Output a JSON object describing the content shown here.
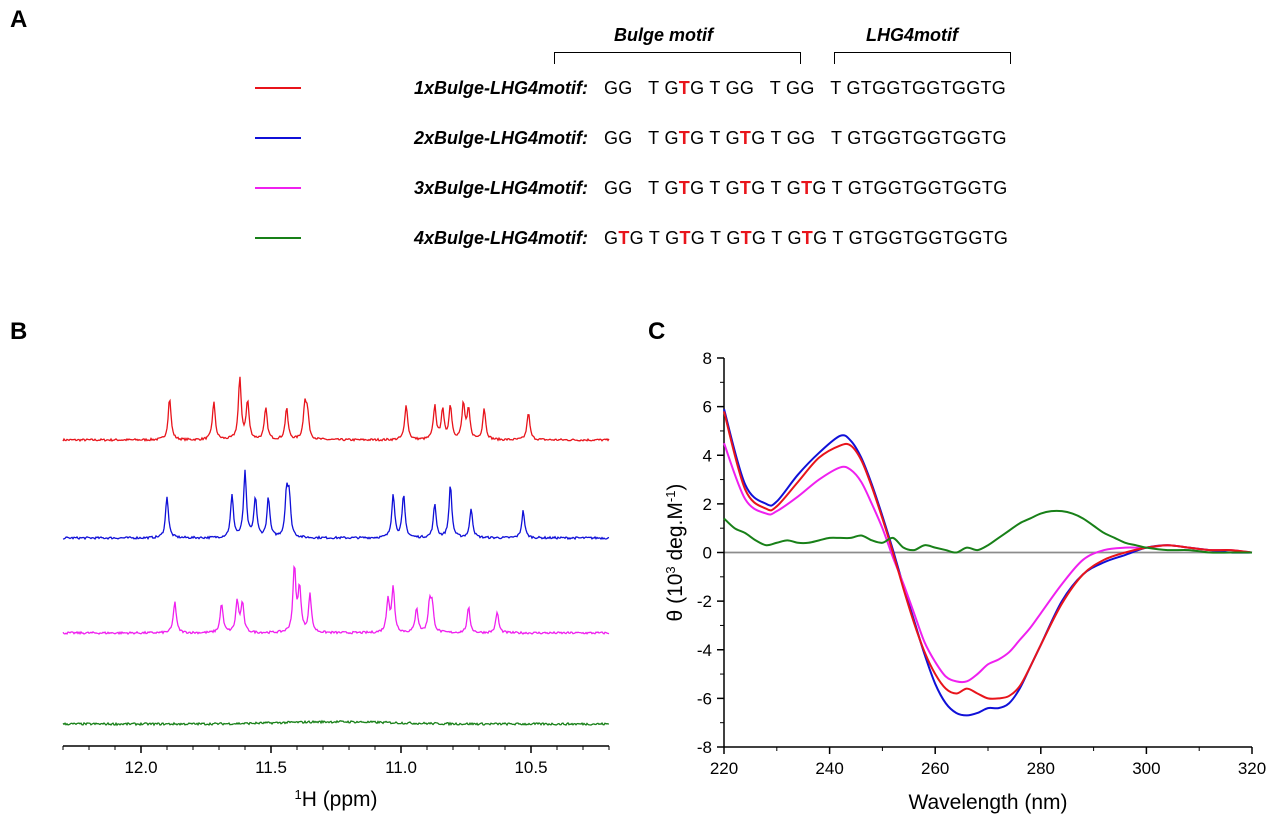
{
  "panel_labels": {
    "a": "A",
    "b": "B",
    "c": "C"
  },
  "panel_a": {
    "brackets": [
      {
        "label": "Bulge motif"
      },
      {
        "label": "LHG4motif"
      }
    ],
    "rows": [
      {
        "name": "1xBulge-LHG4motif:",
        "color": "#e8141b",
        "segments": [
          [
            "GG   T G",
            ""
          ],
          [
            "T",
            "hl"
          ],
          [
            "G T GG   T GG   T GTGGTGGTGGTG",
            ""
          ]
        ]
      },
      {
        "name": "2xBulge-LHG4motif:",
        "color": "#1010d8",
        "segments": [
          [
            "GG   T G",
            ""
          ],
          [
            "T",
            "hl"
          ],
          [
            "G T G",
            ""
          ],
          [
            "T",
            "hl"
          ],
          [
            "G T GG   T GTGGTGGTGGTG",
            ""
          ]
        ]
      },
      {
        "name": "3xBulge-LHG4motif:",
        "color": "#ef20ef",
        "segments": [
          [
            "GG   T G",
            ""
          ],
          [
            "T",
            "hl"
          ],
          [
            "G T G",
            ""
          ],
          [
            "T",
            "hl"
          ],
          [
            "G T G",
            ""
          ],
          [
            "T",
            "hl"
          ],
          [
            "G T GTGGTGGTGGTG",
            ""
          ]
        ]
      },
      {
        "name": "4xBulge-LHG4motif:",
        "color": "#188018",
        "segments": [
          [
            "G",
            ""
          ],
          [
            "T",
            "hl"
          ],
          [
            "G T G",
            ""
          ],
          [
            "T",
            "hl"
          ],
          [
            "G T G",
            ""
          ],
          [
            "T",
            "hl"
          ],
          [
            "G T G",
            ""
          ],
          [
            "T",
            "hl"
          ],
          [
            "G T GTGGTGGTGGTG",
            ""
          ]
        ]
      }
    ],
    "highlight_color": "#e8141b"
  },
  "chart_data": [
    {
      "panel": "B",
      "type": "line",
      "xlabel_sup": "1",
      "xlabel": "H (ppm)",
      "xlim": [
        12.3,
        10.2
      ],
      "x_reversed": true,
      "xticks": [
        "12.0",
        "11.5",
        "11.0",
        "10.5"
      ],
      "xtick_values": [
        12.0,
        11.5,
        11.0,
        10.5
      ],
      "grid": false,
      "series": [
        {
          "color": "#e8141b",
          "peaks": [
            [
              11.89,
              1.0
            ],
            [
              11.72,
              0.9
            ],
            [
              11.62,
              1.45
            ],
            [
              11.59,
              0.9
            ],
            [
              11.52,
              0.75
            ],
            [
              11.44,
              0.75
            ],
            [
              11.37,
              0.8
            ],
            [
              11.36,
              0.6
            ],
            [
              10.98,
              0.85
            ],
            [
              10.87,
              0.8
            ],
            [
              10.84,
              0.7
            ],
            [
              10.81,
              0.8
            ],
            [
              10.76,
              0.85
            ],
            [
              10.74,
              0.7
            ],
            [
              10.68,
              0.75
            ],
            [
              10.51,
              0.65
            ]
          ]
        },
        {
          "color": "#1010d8",
          "peaks": [
            [
              11.9,
              1.0
            ],
            [
              11.65,
              1.0
            ],
            [
              11.6,
              1.55
            ],
            [
              11.56,
              0.95
            ],
            [
              11.51,
              0.95
            ],
            [
              11.44,
              1.05
            ],
            [
              11.43,
              0.9
            ],
            [
              11.03,
              1.05
            ],
            [
              10.99,
              1.0
            ],
            [
              10.87,
              0.8
            ],
            [
              10.81,
              1.25
            ],
            [
              10.73,
              0.7
            ],
            [
              10.53,
              0.65
            ]
          ]
        },
        {
          "color": "#ef20ef",
          "peaks": [
            [
              11.87,
              0.75
            ],
            [
              11.69,
              0.7
            ],
            [
              11.63,
              0.75
            ],
            [
              11.61,
              0.7
            ],
            [
              11.41,
              1.55
            ],
            [
              11.39,
              1.05
            ],
            [
              11.35,
              0.9
            ],
            [
              11.05,
              0.8
            ],
            [
              11.03,
              1.05
            ],
            [
              10.94,
              0.6
            ],
            [
              10.89,
              0.7
            ],
            [
              10.88,
              0.6
            ],
            [
              10.74,
              0.6
            ],
            [
              10.63,
              0.5
            ]
          ]
        },
        {
          "color": "#188018",
          "peaks": []
        }
      ]
    },
    {
      "panel": "C",
      "type": "line",
      "xlabel": "Wavelength (nm)",
      "ylabel_main": "θ (10",
      "ylabel_sup1": "3",
      "ylabel_mid": " deg.M",
      "ylabel_sup2": "-1",
      "ylabel_end": ")",
      "xlim": [
        220,
        320
      ],
      "ylim": [
        -8,
        8
      ],
      "xticks": [
        220,
        240,
        260,
        280,
        300,
        320
      ],
      "yticks": [
        8,
        6,
        4,
        2,
        0,
        -2,
        -4,
        -6,
        -8
      ],
      "zero_line_color": "#8c8c8c",
      "grid": false,
      "series": [
        {
          "color": "#1010d8",
          "x": [
            220,
            224,
            228,
            230,
            234,
            238,
            242,
            244,
            246,
            248,
            250,
            252,
            254,
            256,
            258,
            260,
            262,
            264,
            266,
            268,
            270,
            272,
            274,
            276,
            278,
            280,
            284,
            288,
            292,
            296,
            300,
            304,
            308,
            312,
            316,
            320
          ],
          "y": [
            5.9,
            2.8,
            2.0,
            2.1,
            3.2,
            4.1,
            4.8,
            4.6,
            3.9,
            2.8,
            1.5,
            0.1,
            -1.4,
            -2.8,
            -4.2,
            -5.4,
            -6.2,
            -6.6,
            -6.7,
            -6.6,
            -6.4,
            -6.4,
            -6.2,
            -5.6,
            -4.7,
            -3.8,
            -2.0,
            -0.9,
            -0.4,
            -0.1,
            0.2,
            0.3,
            0.2,
            0.1,
            0.0,
            0.0
          ]
        },
        {
          "color": "#ef20ef",
          "x": [
            220,
            224,
            228,
            230,
            234,
            238,
            242,
            244,
            246,
            248,
            250,
            252,
            254,
            256,
            258,
            260,
            262,
            264,
            266,
            268,
            270,
            272,
            274,
            276,
            278,
            280,
            284,
            288,
            292,
            296,
            300,
            304,
            308,
            312,
            316,
            320
          ],
          "y": [
            4.5,
            2.2,
            1.6,
            1.7,
            2.3,
            3.0,
            3.5,
            3.4,
            2.9,
            2.0,
            1.0,
            -0.2,
            -1.3,
            -2.5,
            -3.7,
            -4.5,
            -5.1,
            -5.3,
            -5.3,
            -5.0,
            -4.6,
            -4.4,
            -4.1,
            -3.6,
            -3.1,
            -2.5,
            -1.3,
            -0.3,
            0.1,
            0.2,
            0.2,
            0.3,
            0.2,
            0.1,
            0.1,
            0.0
          ]
        },
        {
          "color": "#e8141b",
          "x": [
            220,
            224,
            228,
            230,
            234,
            238,
            242,
            244,
            246,
            248,
            250,
            252,
            254,
            256,
            258,
            260,
            262,
            264,
            266,
            268,
            270,
            272,
            274,
            276,
            278,
            280,
            284,
            288,
            292,
            296,
            300,
            304,
            308,
            312,
            316,
            320
          ],
          "y": [
            5.8,
            2.6,
            1.8,
            1.9,
            2.9,
            3.9,
            4.4,
            4.4,
            3.8,
            2.7,
            1.4,
            0.0,
            -1.5,
            -2.9,
            -4.1,
            -5.0,
            -5.6,
            -5.8,
            -5.6,
            -5.8,
            -6.0,
            -6.0,
            -5.9,
            -5.5,
            -4.7,
            -3.8,
            -2.1,
            -0.9,
            -0.3,
            0.0,
            0.2,
            0.3,
            0.2,
            0.1,
            0.1,
            0.0
          ]
        },
        {
          "color": "#188018",
          "x": [
            220,
            222,
            224,
            226,
            228,
            230,
            232,
            234,
            236,
            238,
            240,
            242,
            244,
            246,
            248,
            250,
            252,
            254,
            256,
            258,
            260,
            262,
            264,
            266,
            268,
            270,
            272,
            274,
            276,
            278,
            280,
            282,
            284,
            286,
            288,
            290,
            292,
            294,
            296,
            298,
            300,
            304,
            308,
            312,
            316,
            320
          ],
          "y": [
            1.4,
            1.0,
            0.8,
            0.5,
            0.3,
            0.4,
            0.5,
            0.4,
            0.4,
            0.5,
            0.6,
            0.6,
            0.6,
            0.7,
            0.5,
            0.4,
            0.6,
            0.2,
            0.1,
            0.3,
            0.2,
            0.1,
            0.0,
            0.2,
            0.1,
            0.3,
            0.6,
            0.9,
            1.2,
            1.4,
            1.6,
            1.7,
            1.7,
            1.6,
            1.4,
            1.1,
            0.8,
            0.6,
            0.4,
            0.3,
            0.2,
            0.1,
            0.1,
            0.0,
            0.0,
            0.0
          ]
        }
      ]
    }
  ]
}
